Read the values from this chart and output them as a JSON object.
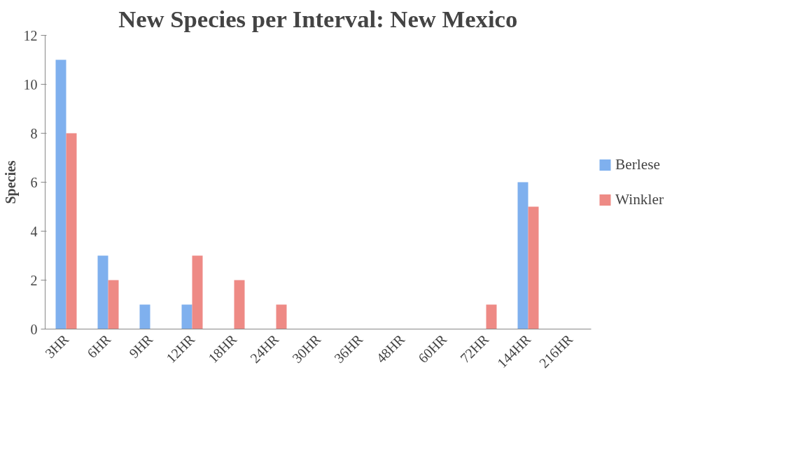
{
  "chart_data": {
    "type": "bar",
    "title": "New Species per Interval: New Mexico",
    "ylabel": "Species",
    "categories": [
      "3HR",
      "6HR",
      "9HR",
      "12HR",
      "18HR",
      "24HR",
      "30HR",
      "36HR",
      "48HR",
      "60HR",
      "72HR",
      "144HR",
      "216HR"
    ],
    "series": [
      {
        "name": "Berlese",
        "color": "#7fb0ee",
        "values": [
          11,
          3,
          1,
          1,
          0,
          0,
          0,
          0,
          0,
          0,
          0,
          6,
          0
        ]
      },
      {
        "name": "Winkler",
        "color": "#ee8a85",
        "values": [
          8,
          2,
          0,
          3,
          2,
          1,
          0,
          0,
          0,
          0,
          1,
          5,
          0
        ]
      }
    ],
    "ylim": [
      0,
      12
    ],
    "yticks": [
      0,
      2,
      4,
      6,
      8,
      10,
      12
    ],
    "grid": false,
    "legend": "right"
  }
}
